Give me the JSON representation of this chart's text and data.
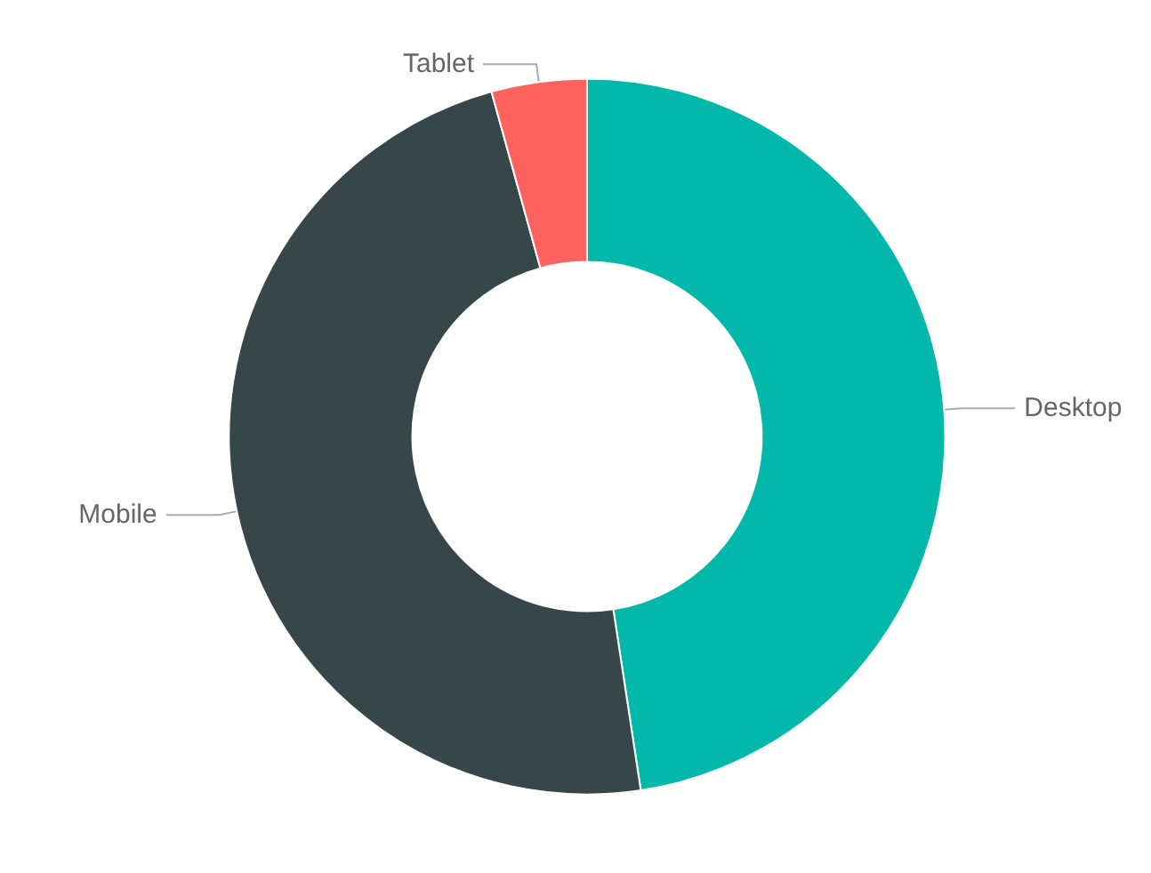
{
  "chart_data": {
    "type": "donut",
    "categories": [
      "Desktop",
      "Mobile",
      "Tablet"
    ],
    "values": [
      47.6,
      48.1,
      4.3
    ],
    "colors": [
      "#01b8aa",
      "#374649",
      "#fd625e"
    ],
    "legend": false
  }
}
